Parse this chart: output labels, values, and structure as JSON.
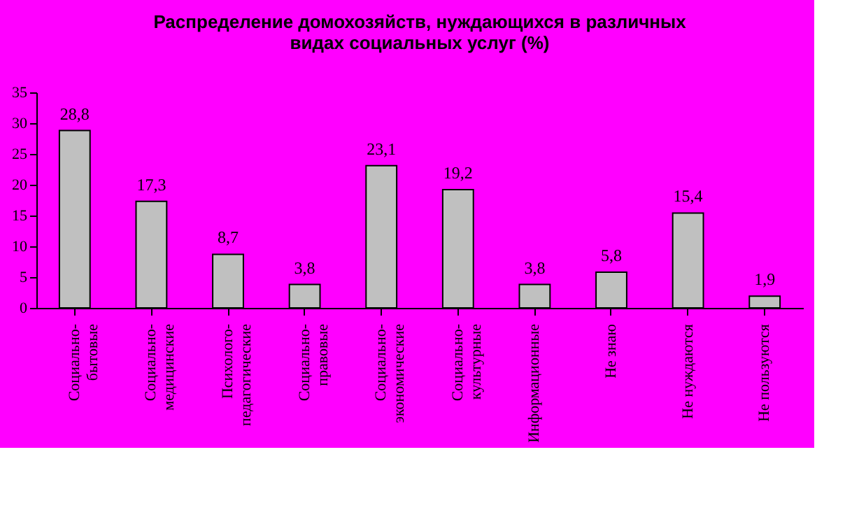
{
  "chart_data": {
    "type": "bar",
    "title": [
      "Распределение домохозяйств, нуждающихся в различных",
      "видах социальных услуг (%)"
    ],
    "categories": [
      "Социально-бытовые",
      "Социально-медицинские",
      "Психолого-педагогические",
      "Социально-правовые",
      "Социально-экономические",
      "Социально-культурные",
      "Информационные",
      "Не знаю",
      "Не нуждаются",
      "Не пользуются"
    ],
    "values": [
      28.8,
      17.3,
      8.7,
      3.8,
      23.1,
      19.2,
      3.8,
      5.8,
      15.4,
      1.9
    ],
    "value_labels": [
      "28,8",
      "17,3",
      "8,7",
      "3,8",
      "23,1",
      "19,2",
      "3,8",
      "5,8",
      "15,4",
      "1,9"
    ],
    "color": "#c0c0c0",
    "ylim": [
      0,
      35
    ],
    "yticks": [
      0,
      5,
      10,
      15,
      20,
      25,
      30,
      35
    ],
    "grid": false
  }
}
